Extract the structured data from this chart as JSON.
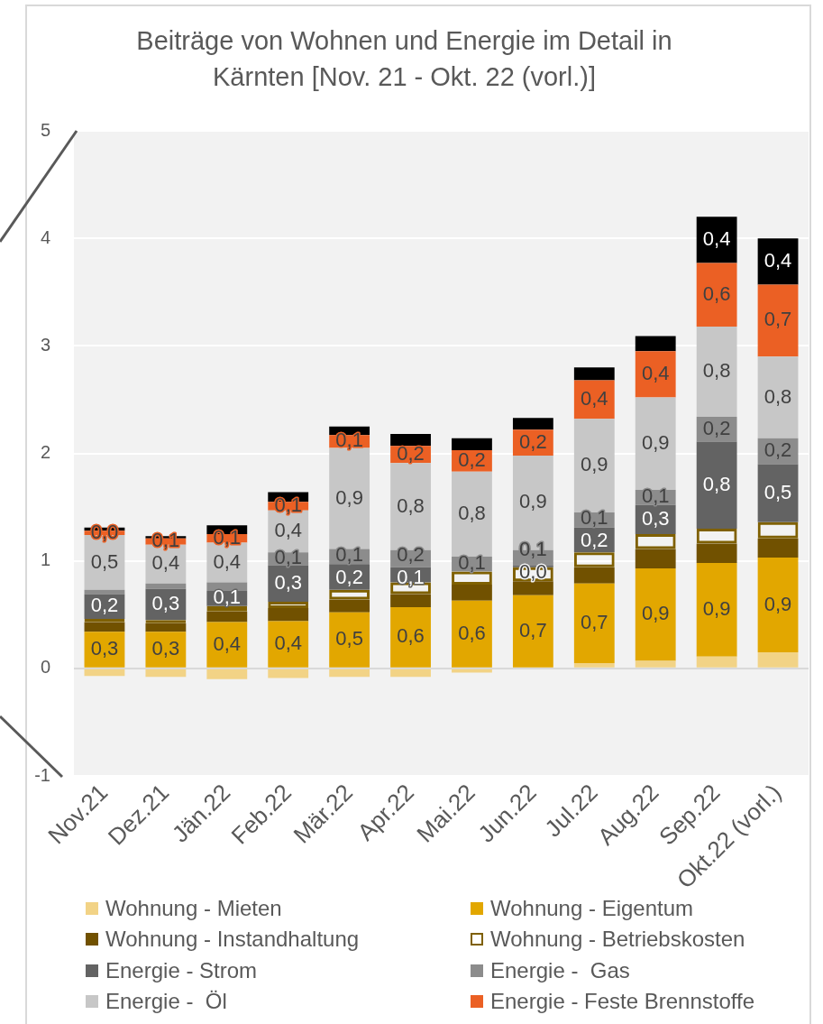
{
  "chart_data": {
    "type": "bar",
    "stacked": true,
    "title": "Beiträge von Wohnen und Energie im Detail in Kärnten [Nov. 21 - Okt. 22 (vorl.)]",
    "categories": [
      "Nov.21",
      "Dez.21",
      "Jän.22",
      "Feb.22",
      "Mär.22",
      "Apr.22",
      "Mai.22",
      "Jun.22",
      "Jul.22",
      "Aug.22",
      "Sep.22",
      "Okt.22 (vorl.)"
    ],
    "ylim": [
      -1,
      5
    ],
    "yticks": [
      -1,
      0,
      1,
      2,
      3,
      4,
      5
    ],
    "grid": "y",
    "legend": "bottom",
    "series": [
      {
        "name": "Wohnung - Mieten",
        "color": "#f2d386",
        "values": [
          -0.07,
          -0.08,
          -0.1,
          -0.09,
          -0.08,
          -0.08,
          -0.04,
          0,
          0.05,
          0.07,
          0.11,
          0.15
        ]
      },
      {
        "name": "Wohnung - Eigentum",
        "color": "#e2a700",
        "values": [
          0.34,
          0.34,
          0.43,
          0.44,
          0.52,
          0.57,
          0.63,
          0.68,
          0.74,
          0.86,
          0.87,
          0.88
        ],
        "value_labels": [
          "0,3",
          "0,3",
          "0,4",
          "0,4",
          "0,5",
          "0,6",
          "0,6",
          "0,7",
          "0,7",
          "0,9",
          "0,9",
          "0,9"
        ]
      },
      {
        "name": "Wohnung - Instandhaltung",
        "color": "#715100",
        "values": [
          0.09,
          0.08,
          0.1,
          0.12,
          0.12,
          0.12,
          0.15,
          0.13,
          0.15,
          0.18,
          0.18,
          0.18
        ]
      },
      {
        "name": "Wohnung - Betriebskosten",
        "color": "#7f6000",
        "line_style": "solid",
        "values": [
          0.03,
          0.03,
          0.05,
          0.06,
          0.09,
          0.11,
          0.12,
          0.13,
          0.14,
          0.14,
          0.14,
          0.15
        ]
      },
      {
        "name": "Energie - Strom",
        "color": "#636363",
        "values": [
          0.23,
          0.29,
          0.14,
          0.34,
          0.24,
          0.14,
          null,
          0.02,
          0.23,
          0.27,
          0.81,
          0.54
        ],
        "value_labels": [
          "0,2",
          "0,3",
          "0,1",
          "0,3",
          "0,2",
          "0,1",
          null,
          "0,0",
          "0,2",
          "0,3",
          "0,8",
          "0,5"
        ]
      },
      {
        "name": "Energie -  Gas",
        "color": "#8c8c8c",
        "values": [
          0.04,
          0.05,
          0.08,
          0.12,
          0.14,
          0.16,
          0.14,
          0.14,
          0.14,
          0.14,
          0.23,
          0.24
        ],
        "value_labels": [
          null,
          null,
          null,
          "0,1",
          "0,1",
          "0,2",
          "0,1",
          "0,1",
          "0,1",
          "0,1",
          "0,2",
          "0,2"
        ]
      },
      {
        "name": "Energie -  Öl",
        "color": "#c7c7c7",
        "values": [
          0.51,
          0.36,
          0.37,
          0.39,
          0.94,
          0.81,
          0.79,
          0.88,
          0.87,
          0.86,
          0.84,
          0.76
        ],
        "value_labels": [
          "0,5",
          "0,4",
          "0,4",
          "0,4",
          "0,9",
          "0,8",
          "0,8",
          "0,9",
          "0,9",
          "0,9",
          "0,8",
          "0,8"
        ]
      },
      {
        "name": "Energie - Feste Brennstoffe",
        "color": "#eb6024",
        "values": [
          0.04,
          0.06,
          0.08,
          0.08,
          0.12,
          0.16,
          0.2,
          0.24,
          0.36,
          0.43,
          0.59,
          0.67
        ],
        "value_labels": [
          "0,0",
          "0,1",
          "0,1",
          "0,1",
          "0,1",
          "0,2",
          "0,2",
          "0,2",
          "0,4",
          "0,4",
          "0,6",
          "0,7"
        ]
      },
      {
        "color": "#000000",
        "values": [
          0.03,
          0.02,
          0.08,
          0.09,
          0.08,
          0.11,
          0.11,
          0.11,
          0.12,
          0.14,
          0.43,
          0.43
        ],
        "value_labels": [
          null,
          null,
          null,
          null,
          null,
          null,
          null,
          null,
          null,
          null,
          "0,4",
          "0,4"
        ]
      }
    ]
  }
}
